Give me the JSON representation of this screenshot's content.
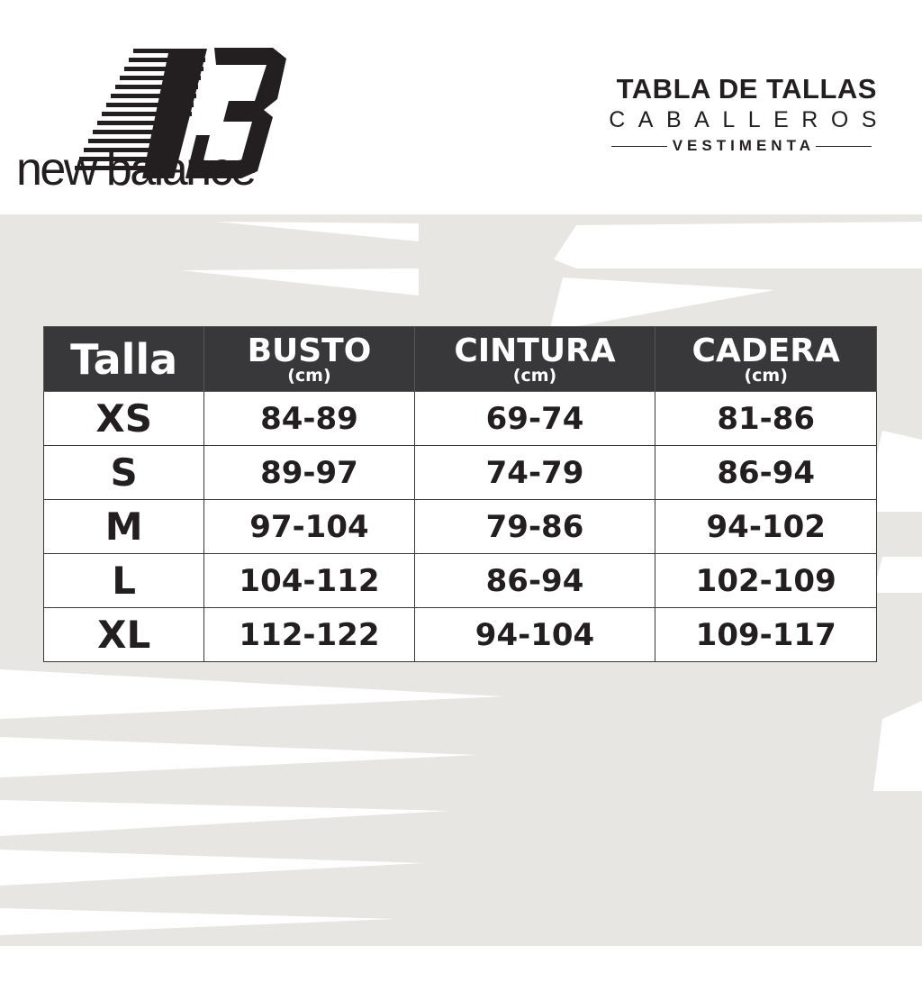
{
  "brand": {
    "logo_text": "new balance",
    "logo_monogram": "NB"
  },
  "header": {
    "title": "TABLA DE TALLAS",
    "subtitle": "CABALLEROS",
    "category": "VESTIMENTA"
  },
  "colors": {
    "header_bg": "#38383a",
    "background_gray": "#e8e6e2",
    "text": "#231f20"
  },
  "table": {
    "columns": [
      {
        "label": "Talla",
        "unit": ""
      },
      {
        "label": "BUSTO",
        "unit": "(cm)"
      },
      {
        "label": "CINTURA",
        "unit": "(cm)"
      },
      {
        "label": "CADERA",
        "unit": "(cm)"
      }
    ],
    "rows": [
      [
        "XS",
        "84-89",
        "69-74",
        "81-86"
      ],
      [
        "S",
        "89-97",
        "74-79",
        "86-94"
      ],
      [
        "M",
        "97-104",
        "79-86",
        "94-102"
      ],
      [
        "L",
        "104-112",
        "86-94",
        "102-109"
      ],
      [
        "XL",
        "112-122",
        "94-104",
        "109-117"
      ]
    ]
  }
}
